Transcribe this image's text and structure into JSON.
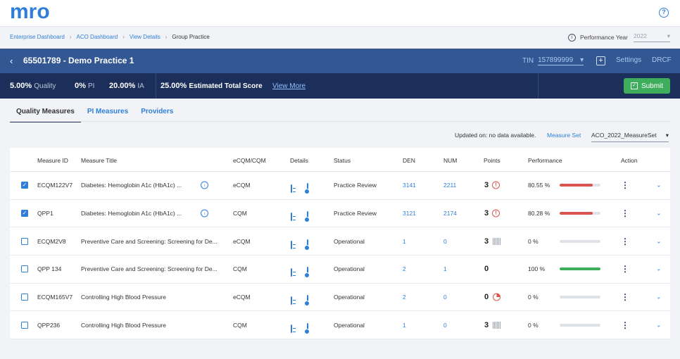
{
  "header": {
    "logo_text": "mro",
    "help_icon": "question-circle-icon"
  },
  "breadcrumb": [
    "Enterprise Dashboard",
    "ACO Dashboard",
    "View Details",
    "Group Practice"
  ],
  "performance_year": {
    "label": "Performance Year",
    "value": "2022"
  },
  "practice": {
    "title": "65501789 - Demo Practice 1",
    "tin_label": "TIN",
    "tin_value": "157899999",
    "settings": "Settings",
    "drcf": "DRCF"
  },
  "scores": {
    "quality_value": "5.00%",
    "quality_label": "Quality",
    "pi_value": "0%",
    "pi_label": "PI",
    "ia_value": "20.00%",
    "ia_label": "IA",
    "total_value": "25.00%",
    "total_label": "Estimated Total Score",
    "view_more": "View More",
    "submit": "Submit"
  },
  "tabs": [
    "Quality Measures",
    "PI Measures",
    "Providers"
  ],
  "updated": "Updated on: no data available.",
  "measure_set": {
    "label": "Measure Set",
    "value": "ACO_2022_MeasureSet"
  },
  "columns": [
    "Measure ID",
    "Measure Title",
    "eCQM/CQM",
    "Details",
    "Status",
    "DEN",
    "NUM",
    "Points",
    "Performance",
    "Action"
  ],
  "rows": [
    {
      "checked": true,
      "id": "ECQM122V7",
      "title": "Diabetes: Hemoglobin A1c (HbA1c) ...",
      "download": true,
      "type": "eCQM",
      "status": "Practice Review",
      "den": "3141",
      "num": "2211",
      "points": "3",
      "points_icon": "alert",
      "perf_text": "80.55 %",
      "perf": 0.8055,
      "perf_color": "#d9534f"
    },
    {
      "checked": true,
      "id": "QPP1",
      "title": "Diabetes: Hemoglobin A1c (HbA1c) ...",
      "download": true,
      "type": "CQM",
      "status": "Practice Review",
      "den": "3121",
      "num": "2174",
      "points": "3",
      "points_icon": "alert",
      "perf_text": "80.28 %",
      "perf": 0.8028,
      "perf_color": "#d9534f"
    },
    {
      "checked": false,
      "id": "ECQM2V8",
      "title": "Preventive Care and Screening: Screening for De...",
      "download": false,
      "type": "eCQM",
      "status": "Operational",
      "den": "1",
      "num": "0",
      "points": "3",
      "points_icon": "bars",
      "perf_text": "0 %",
      "perf": 0,
      "perf_color": "#d9534f"
    },
    {
      "checked": false,
      "id": "QPP 134",
      "title": "Preventive Care and Screening: Screening for De...",
      "download": false,
      "type": "CQM",
      "status": "Operational",
      "den": "2",
      "num": "1",
      "points": "0",
      "points_icon": "",
      "perf_text": "100 %",
      "perf": 1.0,
      "perf_color": "#3fae5c"
    },
    {
      "checked": false,
      "id": "ECQM165V7",
      "title": "Controlling High Blood Pressure",
      "download": false,
      "type": "eCQM",
      "status": "Operational",
      "den": "2",
      "num": "0",
      "points": "0",
      "points_icon": "pie",
      "perf_text": "0 %",
      "perf": 0,
      "perf_color": "#d9534f"
    },
    {
      "checked": false,
      "id": "QPP236",
      "title": "Controlling High Blood Pressure",
      "download": false,
      "type": "CQM",
      "status": "Operational",
      "den": "1",
      "num": "0",
      "points": "3",
      "points_icon": "bars",
      "perf_text": "0 %",
      "perf": 0,
      "perf_color": "#d9534f"
    }
  ]
}
